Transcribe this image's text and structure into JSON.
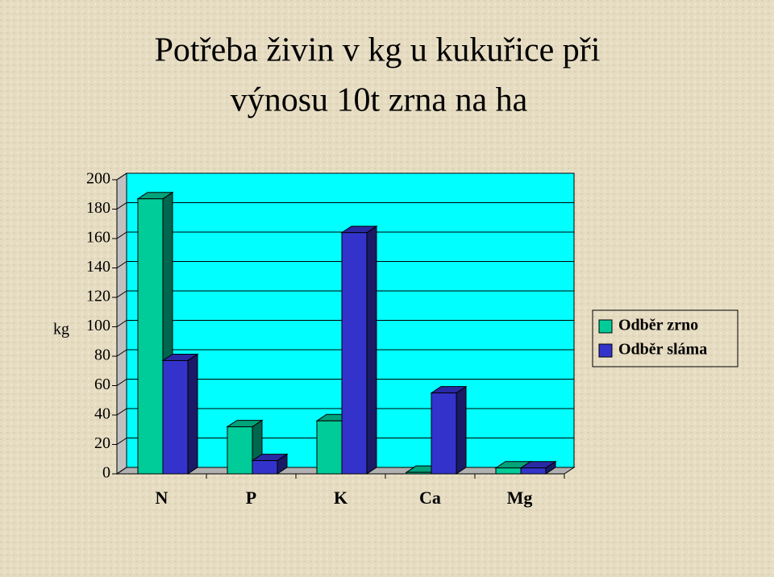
{
  "chart_data": {
    "type": "bar3d",
    "title": [
      "Potřeba živin v kg u kukuřice při",
      "výnosu 10t zrna na ha"
    ],
    "y_label": "kg",
    "categories": [
      "N",
      "P",
      "K",
      "Ca",
      "Mg"
    ],
    "series": [
      {
        "name": "Odběr zrno",
        "color": "#00cc99",
        "values": [
          187,
          32,
          36,
          1,
          4
        ]
      },
      {
        "name": "Odběr sláma",
        "color": "#3333cc",
        "values": [
          77,
          9,
          164,
          55,
          4
        ]
      }
    ],
    "ylim": [
      0,
      200
    ],
    "yticks": [
      0,
      20,
      40,
      60,
      80,
      100,
      120,
      140,
      160,
      180,
      200
    ],
    "grid": true,
    "legend": "right"
  }
}
